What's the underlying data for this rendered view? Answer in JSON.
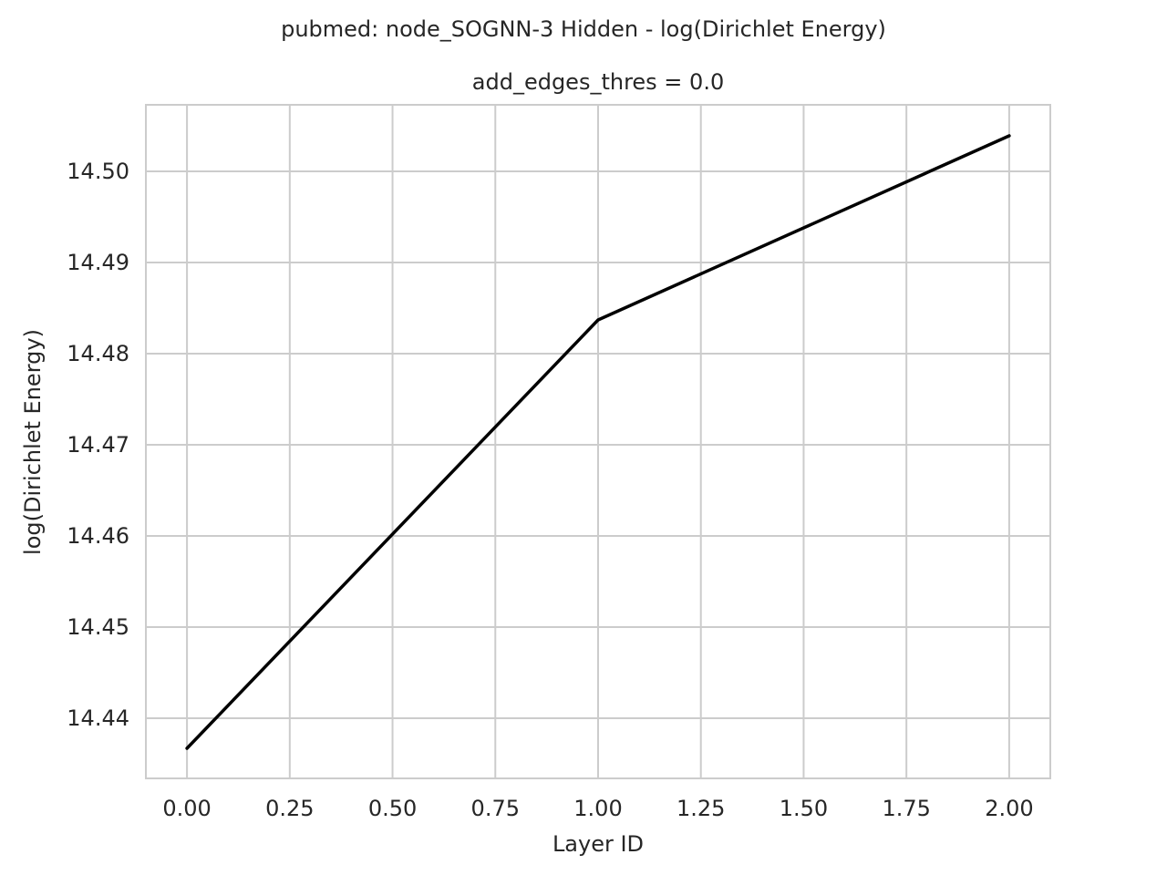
{
  "chart_data": {
    "type": "line",
    "suptitle": "pubmed: node_SOGNN-3 Hidden - log(Dirichlet Energy)",
    "title": "add_edges_thres = 0.0",
    "xlabel": "Layer ID",
    "ylabel": "log(Dirichlet Energy)",
    "x": [
      0,
      1,
      2
    ],
    "series": [
      {
        "values": [
          14.4367,
          14.4837,
          14.5039
        ],
        "color": "#000000"
      }
    ],
    "xlim": [
      -0.1,
      2.1
    ],
    "ylim": [
      14.4334,
      14.5073
    ],
    "xticks": [
      0,
      0.25,
      0.5,
      0.75,
      1,
      1.25,
      1.5,
      1.75,
      2
    ],
    "xtick_labels": [
      "0.00",
      "0.25",
      "0.50",
      "0.75",
      "1.00",
      "1.25",
      "1.50",
      "1.75",
      "2.00"
    ],
    "yticks": [
      14.44,
      14.45,
      14.46,
      14.47,
      14.48,
      14.49,
      14.5
    ],
    "ytick_labels": [
      "14.44",
      "14.45",
      "14.46",
      "14.47",
      "14.48",
      "14.49",
      "14.50"
    ],
    "grid": true,
    "grid_color": "#cccccc",
    "background": "#ffffff"
  }
}
